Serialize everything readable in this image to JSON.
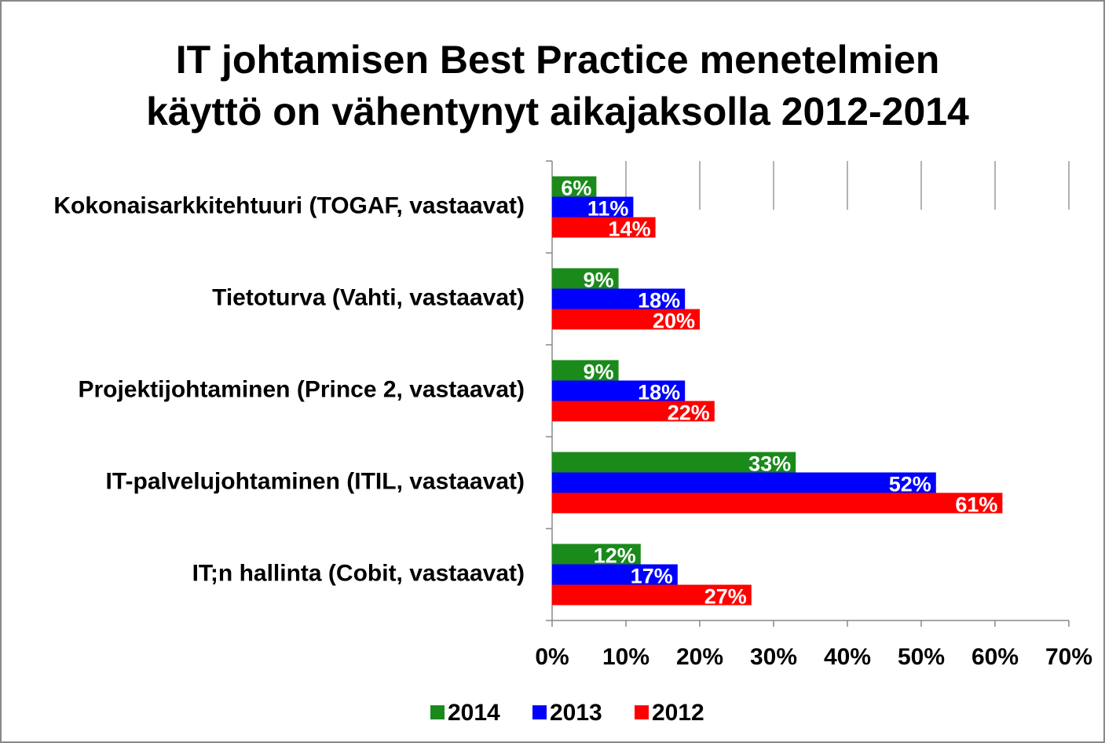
{
  "chart_data": {
    "type": "bar",
    "orientation": "horizontal",
    "title": [
      "IT johtamisen Best Practice menetelmien",
      "käyttö on vähentynyt aikajaksolla 2012-2014"
    ],
    "categories": [
      "Kokonaisarkkitehtuuri (TOGAF, vastaavat)",
      "Tietoturva (Vahti, vastaavat)",
      "Projektijohtaminen (Prince 2, vastaavat)",
      "IT-palvelujohtaminen (ITIL, vastaavat)",
      "IT;n hallinta (Cobit, vastaavat)"
    ],
    "series": [
      {
        "name": "2014",
        "color": "#1a8a1a",
        "values": [
          6,
          9,
          9,
          33,
          12
        ],
        "value_labels": [
          "6%",
          "9%",
          "9%",
          "33%",
          "12%"
        ]
      },
      {
        "name": "2013",
        "color": "#0000ff",
        "values": [
          11,
          18,
          18,
          52,
          17
        ],
        "value_labels": [
          "11%",
          "18%",
          "18%",
          "52%",
          "17%"
        ]
      },
      {
        "name": "2012",
        "color": "#ff0000",
        "values": [
          14,
          20,
          22,
          61,
          27
        ],
        "value_labels": [
          "14%",
          "20%",
          "22%",
          "61%",
          "27%"
        ]
      }
    ],
    "xlim": [
      0,
      70
    ],
    "xticks": [
      {
        "value": 0,
        "label": "0%"
      },
      {
        "value": 10,
        "label": "10%"
      },
      {
        "value": 20,
        "label": "20%"
      },
      {
        "value": 30,
        "label": "30%"
      },
      {
        "value": 40,
        "label": "40%"
      },
      {
        "value": 50,
        "label": "50%"
      },
      {
        "value": 60,
        "label": "60%"
      },
      {
        "value": 70,
        "label": "70%"
      }
    ],
    "grid": true,
    "legend": "bottom"
  }
}
